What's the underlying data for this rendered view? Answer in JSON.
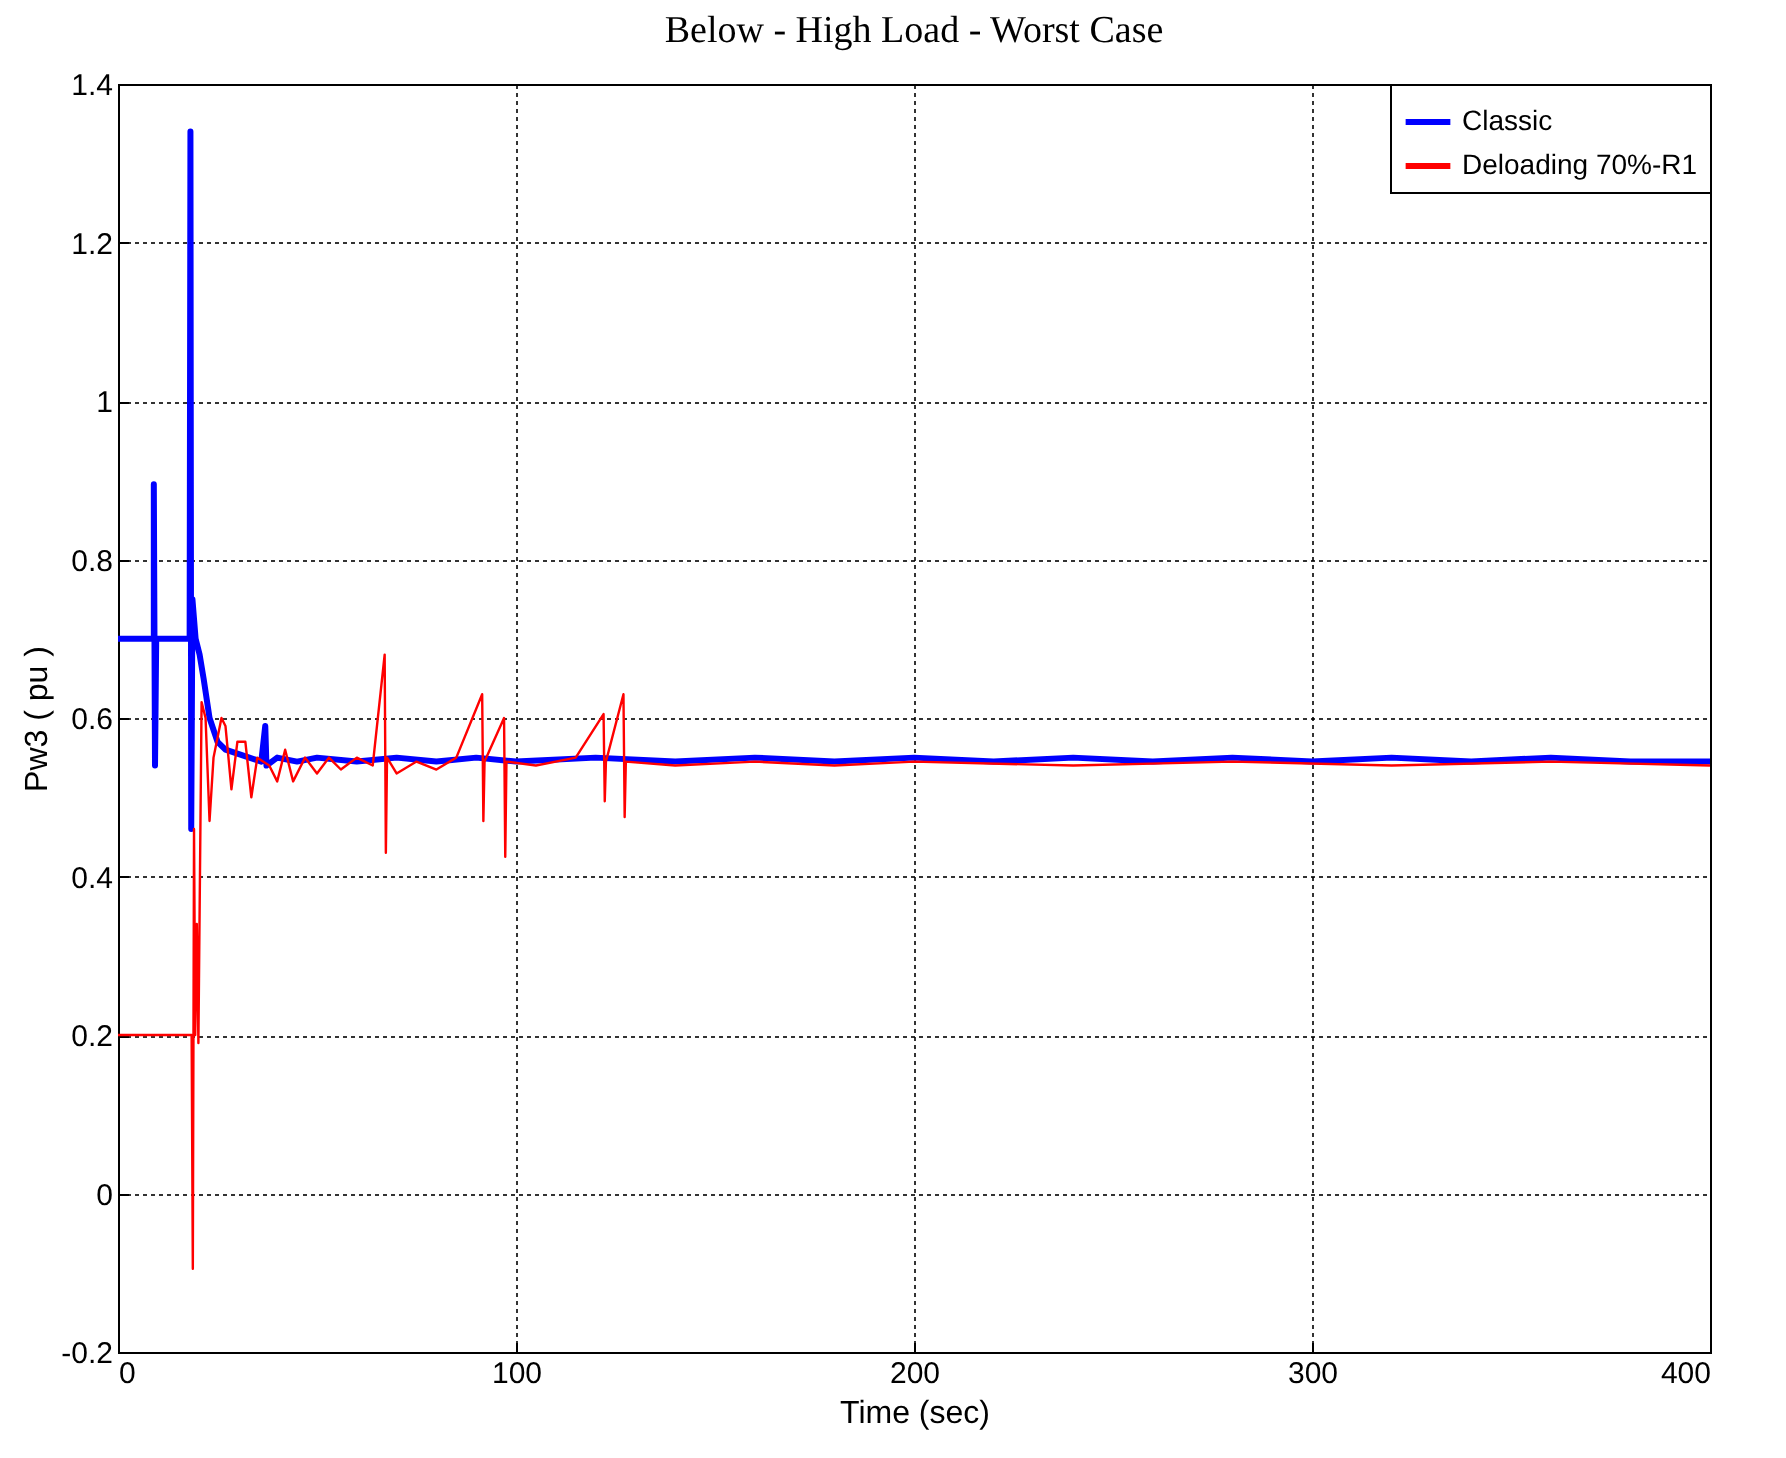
{
  "chart_data": {
    "type": "line",
    "title": "Below - High Load - Worst Case",
    "xlabel": "Time (sec)",
    "ylabel": "Pw3 ( pu )",
    "xlim": [
      0,
      400
    ],
    "xticks": [
      0,
      100,
      200,
      300,
      400
    ],
    "ylim": [
      -0.2,
      1.4
    ],
    "yticks": [
      -0.2,
      0,
      0.2,
      0.4,
      0.6,
      0.8,
      1,
      1.2,
      1.4
    ],
    "grid": true,
    "legend": "top right",
    "series": [
      {
        "name": "Classic",
        "color": "#0000ff",
        "x": [
          0,
          9,
          9,
          9.3,
          9.6,
          18,
          18.2,
          18.4,
          18.7,
          19.5,
          20.5,
          21.5,
          23,
          25,
          27,
          30,
          33,
          36,
          37,
          37.3,
          40,
          45,
          50,
          60,
          70,
          80,
          90,
          100,
          120,
          140,
          160,
          180,
          200,
          220,
          240,
          260,
          280,
          300,
          320,
          340,
          360,
          380,
          400
        ],
        "values": [
          0.7,
          0.7,
          0.895,
          0.54,
          0.7,
          0.7,
          1.34,
          0.46,
          0.75,
          0.7,
          0.68,
          0.65,
          0.6,
          0.57,
          0.56,
          0.555,
          0.55,
          0.545,
          0.59,
          0.54,
          0.55,
          0.545,
          0.55,
          0.545,
          0.55,
          0.545,
          0.55,
          0.545,
          0.55,
          0.545,
          0.55,
          0.545,
          0.55,
          0.545,
          0.55,
          0.545,
          0.55,
          0.545,
          0.55,
          0.545,
          0.55,
          0.545,
          0.545
        ]
      },
      {
        "name": "Deloading 70%-R1",
        "color": "#ff0000",
        "x": [
          0,
          18.5,
          18.8,
          19.1,
          19.4,
          19.8,
          20.2,
          21,
          22,
          23,
          24,
          26,
          27,
          28.5,
          30,
          32,
          33.5,
          35,
          38,
          40,
          42,
          44,
          47,
          50,
          53,
          56,
          60,
          64,
          67,
          67.3,
          67.6,
          70,
          75,
          80,
          85,
          91.5,
          91.8,
          92.1,
          97,
          97.3,
          97.6,
          105,
          115,
          122,
          122.3,
          122.6,
          127,
          127.3,
          127.6,
          140,
          160,
          180,
          200,
          240,
          280,
          320,
          360,
          400
        ],
        "values": [
          0.2,
          0.2,
          -0.095,
          0.46,
          0.2,
          0.34,
          0.19,
          0.62,
          0.6,
          0.47,
          0.55,
          0.6,
          0.59,
          0.51,
          0.57,
          0.57,
          0.5,
          0.55,
          0.54,
          0.52,
          0.56,
          0.52,
          0.55,
          0.53,
          0.55,
          0.535,
          0.55,
          0.54,
          0.68,
          0.43,
          0.55,
          0.53,
          0.545,
          0.535,
          0.55,
          0.63,
          0.47,
          0.545,
          0.6,
          0.425,
          0.545,
          0.54,
          0.55,
          0.605,
          0.495,
          0.545,
          0.63,
          0.475,
          0.545,
          0.54,
          0.545,
          0.54,
          0.545,
          0.54,
          0.545,
          0.54,
          0.545,
          0.54
        ]
      }
    ]
  }
}
